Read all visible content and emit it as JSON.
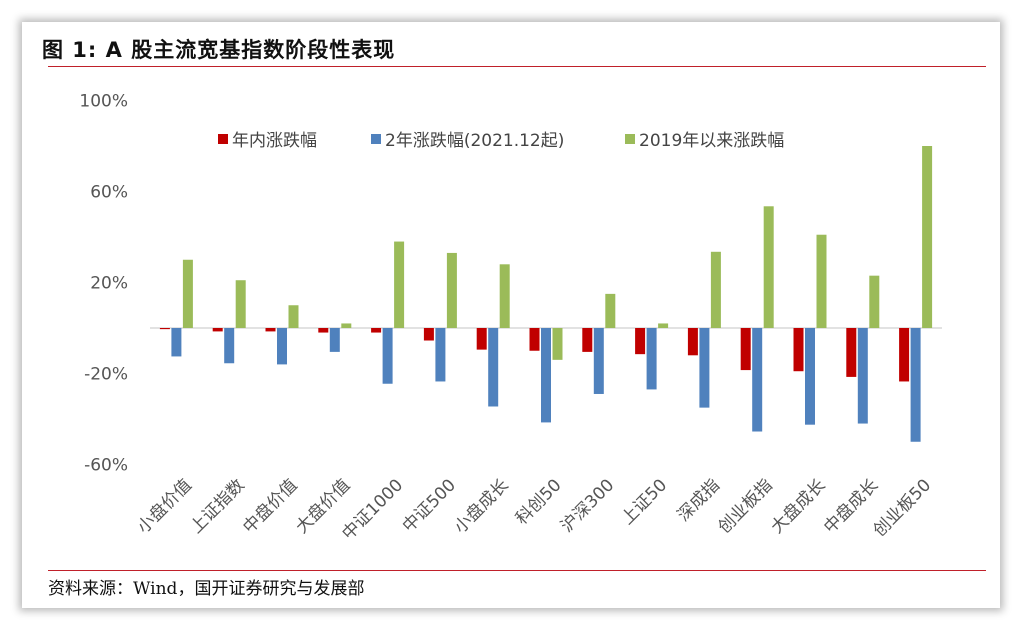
{
  "title": "图 1:  A 股主流宽基指数阶段性表现",
  "source": "资料来源：Wind，国开证券研究与发展部",
  "chart_data": {
    "type": "bar",
    "categories": [
      "小盘价值",
      "上证指数",
      "中盘价值",
      "大盘价值",
      "中证1000",
      "中证500",
      "小盘成长",
      "科创50",
      "沪深300",
      "上证50",
      "深成指",
      "创业板指",
      "大盘成长",
      "中盘成长",
      "创业板50"
    ],
    "series": [
      {
        "name": "年内涨跌幅",
        "color": "#c00000",
        "values": [
          -0.5,
          -1.5,
          -1.5,
          -2.0,
          -2.0,
          -5.5,
          -9.5,
          -10.0,
          -10.5,
          -11.5,
          -12.0,
          -18.5,
          -19.0,
          -21.5,
          -23.5
        ]
      },
      {
        "name": "2年涨跌幅(2021.12起)",
        "color": "#4f81bd",
        "values": [
          -12.5,
          -15.5,
          -16.0,
          -10.5,
          -24.5,
          -23.5,
          -34.5,
          -41.5,
          -29.0,
          -27.0,
          -35.0,
          -45.5,
          -42.5,
          -42.0,
          -50.0
        ]
      },
      {
        "name": "2019年以来涨跌幅",
        "color": "#9bbb59",
        "values": [
          30.0,
          21.0,
          10.0,
          2.0,
          38.0,
          33.0,
          28.0,
          -14.0,
          15.0,
          2.0,
          33.5,
          53.5,
          41.0,
          23.0,
          80.0
        ]
      }
    ],
    "yticks": [
      "100%",
      "60%",
      "20%",
      "-20%",
      "-60%"
    ],
    "ytick_values": [
      100,
      60,
      20,
      -20,
      -60
    ],
    "ylim": [
      -60,
      100
    ],
    "ylabel": "",
    "xlabel": "",
    "grid": false,
    "legend": "top"
  }
}
